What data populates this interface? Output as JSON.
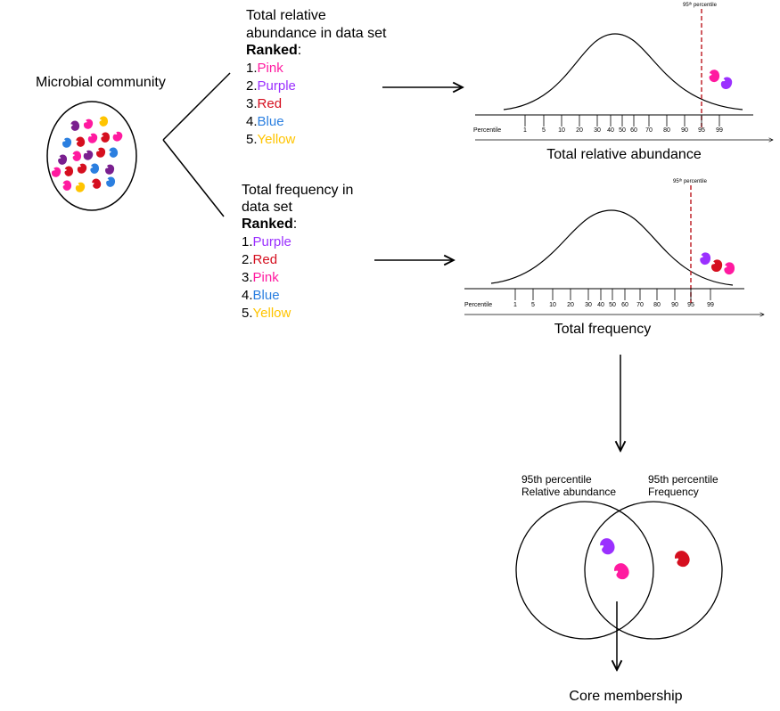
{
  "colors": {
    "pink": "#ff1aa0",
    "purple": "#9b30ff",
    "red": "#d50f1f",
    "blue": "#2b7fe0",
    "yellow": "#ffc400",
    "dark_purple": "#7a1f8f",
    "dashed_line": "#c1272d"
  },
  "community": {
    "title": "Microbial community"
  },
  "abundance": {
    "heading_1": "Total relative",
    "heading_2": "abundance in data set",
    "ranked_label": "Ranked",
    "items": [
      {
        "num": "1.",
        "name": "Pink",
        "color_key": "pink"
      },
      {
        "num": "2.",
        "name": "Purple",
        "color_key": "purple"
      },
      {
        "num": "3.",
        "name": "Red",
        "color_key": "red"
      },
      {
        "num": "4.",
        "name": "Blue",
        "color_key": "blue"
      },
      {
        "num": "5.",
        "name": "Yellow",
        "color_key": "yellow"
      }
    ],
    "chart_percentile_note": "95ᵗʰ percentile",
    "axis_label": "Percentile",
    "ticks": [
      "1",
      "5",
      "10",
      "20",
      "30",
      "40",
      "50",
      "60",
      "70",
      "80",
      "90",
      "95",
      "99"
    ],
    "chart_title": "Total relative abundance"
  },
  "frequency": {
    "heading_1": "Total frequency in",
    "heading_2": "data set",
    "ranked_label": "Ranked",
    "items": [
      {
        "num": "1.",
        "name": "Purple",
        "color_key": "purple"
      },
      {
        "num": "2.",
        "name": "Red",
        "color_key": "red"
      },
      {
        "num": "3.",
        "name": "Pink",
        "color_key": "pink"
      },
      {
        "num": "4.",
        "name": "Blue",
        "color_key": "blue"
      },
      {
        "num": "5.",
        "name": "Yellow",
        "color_key": "yellow"
      }
    ],
    "chart_percentile_note": "95ᵗʰ percentile",
    "axis_label": "Percentile",
    "ticks": [
      "1",
      "5",
      "10",
      "20",
      "30",
      "40",
      "50",
      "60",
      "70",
      "80",
      "90",
      "95",
      "99"
    ],
    "chart_title": "Total frequency"
  },
  "venn": {
    "left_line_1": "95th percentile",
    "left_line_2": "Relative abundance",
    "right_line_1": "95th percentile",
    "right_line_2": "Frequency"
  },
  "result": {
    "label": "Core membership"
  }
}
